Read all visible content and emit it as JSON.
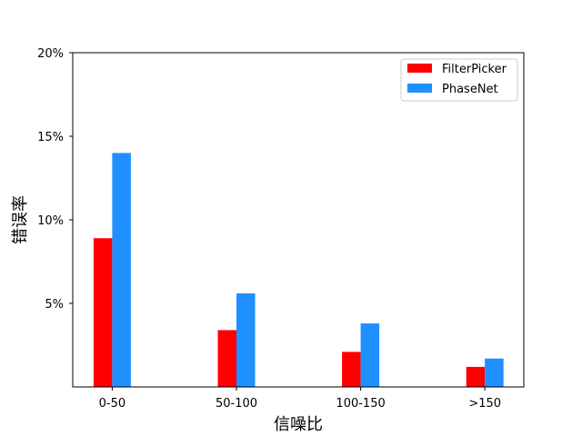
{
  "chart_data": {
    "type": "bar",
    "title": "",
    "xlabel": "信噪比",
    "ylabel": "错误率",
    "categories": [
      "0-50",
      "50-100",
      "100-150",
      ">150"
    ],
    "series": [
      {
        "name": "FilterPicker",
        "color": "#ff0000",
        "values": [
          8.9,
          3.4,
          2.1,
          1.2
        ]
      },
      {
        "name": "PhaseNet",
        "color": "#1e90ff",
        "values": [
          14.0,
          5.6,
          3.8,
          1.7
        ]
      }
    ],
    "ylim": [
      0,
      20
    ],
    "yticks": [
      5,
      10,
      15,
      20
    ],
    "ytick_labels": [
      "5%",
      "10%",
      "15%",
      "20%"
    ],
    "grid": false,
    "legend": "top-right"
  }
}
